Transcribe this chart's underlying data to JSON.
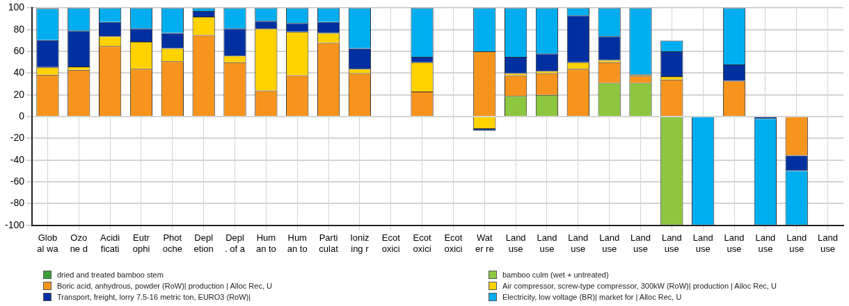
{
  "chart_data": {
    "type": "bar",
    "stacked": true,
    "categories": [
      "Glob al wa",
      "Ozo ne d",
      "Acidi ficati",
      "Eutr ophi",
      "Phot oche",
      "Depl etion",
      "Depl . of a",
      "Hum an to",
      "Hum an to",
      "Parti culat",
      "Ioniz ing r",
      "Ecot oxici",
      "Ecot oxici",
      "Ecot oxici",
      "Wat er re",
      "Land use",
      "Land use",
      "Land use",
      "Land use",
      "Land use",
      "Land use",
      "Land use",
      "Land use",
      "Land use",
      "Land use",
      "Land use"
    ],
    "series": [
      {
        "name": "dried and treated bamboo stem",
        "color": "#3a9e3a",
        "values": [
          null,
          null,
          null,
          null,
          null,
          null,
          null,
          null,
          null,
          null,
          null,
          null,
          null,
          null,
          null,
          null,
          null,
          null,
          null,
          null,
          null,
          null,
          null,
          null,
          null,
          null
        ]
      },
      {
        "name": "bamboo culm (wet + untreated)",
        "color": "#8dc63f",
        "values": [
          null,
          null,
          null,
          null,
          null,
          null,
          null,
          null,
          null,
          null,
          null,
          null,
          null,
          null,
          null,
          19,
          20,
          null,
          31,
          31,
          -100,
          null,
          null,
          null,
          null,
          null
        ]
      },
      {
        "name": "Boric acid, anhydrous, powder (RoW)| production | Alloc Rec, U",
        "color": "#f7941d",
        "values": [
          38.5,
          43,
          65,
          44,
          51,
          75,
          50,
          24,
          38,
          68,
          40,
          null,
          23,
          null,
          60,
          19,
          20,
          44,
          19,
          6.5,
          34,
          null,
          33,
          null,
          -36,
          null
        ]
      },
      {
        "name": "Air compressor, screw-type compressor, 300kW (RoW)| production | Alloc Rec, U",
        "color": "#ffd200",
        "values": [
          7,
          3,
          9,
          25,
          12,
          17,
          6,
          57,
          40,
          9,
          4,
          null,
          27,
          null,
          -11.5,
          2,
          2,
          6,
          2,
          1,
          3,
          null,
          null,
          null,
          null,
          null
        ]
      },
      {
        "name": "Transport, freight, lorry 7.5-16 metric ton, EURO3 (RoW)|",
        "color": "#0030a0",
        "values": [
          25,
          33,
          13,
          12,
          14,
          5,
          25,
          7,
          8,
          10,
          19,
          null,
          5,
          null,
          -1.5,
          15,
          16,
          43,
          22,
          0.5,
          23,
          null,
          15,
          -2,
          -14,
          null
        ]
      },
      {
        "name": "Electricity, low voltage (BR)| market for | Alloc Rec, U",
        "color": "#00aeef",
        "values": [
          29,
          21,
          13,
          19,
          23,
          3,
          19,
          12,
          14,
          13,
          37,
          null,
          45,
          null,
          40,
          45,
          42,
          7,
          26,
          61,
          10,
          -100,
          52,
          -98,
          -50,
          null
        ]
      }
    ],
    "ylim": [
      -100,
      100
    ],
    "yticks": [
      -100,
      -80,
      -60,
      -40,
      -20,
      0,
      20,
      40,
      60,
      80,
      100
    ],
    "grid": true,
    "legend": "bottom"
  }
}
